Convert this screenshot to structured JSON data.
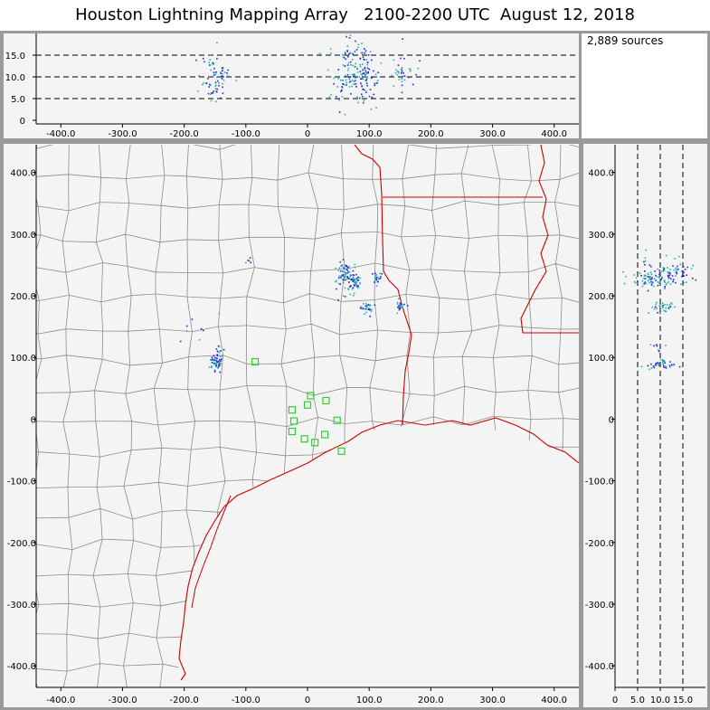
{
  "title": "Houston Lightning Mapping Array   2100-2200 UTC  August 12, 2018",
  "source_count": "2,889 sources",
  "colors": {
    "frame": "#9a9a9a",
    "panel_bg": "#f4f4f4",
    "county_lines": "#8c8c8c",
    "coast_state_lines": "#cc0000",
    "station_marker": "#33cc33",
    "source_early": "#2a1fe0",
    "source_late": "#19b8a8"
  },
  "chart_data": [
    {
      "panel": "altitude-vs-east",
      "type": "scatter",
      "xlim": [
        -440,
        440
      ],
      "ylim": [
        0,
        20
      ],
      "x_ticks": [
        "-400.0",
        "-300.0",
        "-200.0",
        "-100.0",
        "0",
        "100.0",
        "200.0",
        "300.0",
        "400.0"
      ],
      "y_ticks": [
        "0",
        "5.0",
        "10.0",
        "15.0"
      ],
      "dashed_reference_lines_y": [
        5,
        10,
        15
      ],
      "clusters": [
        {
          "x": -150,
          "y": 10,
          "spread_x": 12,
          "spread_y": 2.5,
          "n": 70
        },
        {
          "x": 70,
          "y": 12,
          "spread_x": 18,
          "spread_y": 3.5,
          "n": 140
        },
        {
          "x": 95,
          "y": 10,
          "spread_x": 10,
          "spread_y": 2.5,
          "n": 40
        },
        {
          "x": 150,
          "y": 11,
          "spread_x": 12,
          "spread_y": 2.5,
          "n": 35
        }
      ]
    },
    {
      "panel": "plan-view",
      "type": "scatter",
      "xlim": [
        -440,
        440
      ],
      "ylim": [
        -435,
        445
      ],
      "x_ticks": [
        "-400.0",
        "-300.0",
        "-200.0",
        "-100.0",
        "0",
        "100.0",
        "200.0",
        "300.0",
        "400.0"
      ],
      "y_ticks": [
        "400.0",
        "300.0",
        "200.0",
        "100.0",
        "0",
        "-100.0",
        "-200.0",
        "-300.0",
        "-400.0"
      ],
      "source_clusters": [
        {
          "x": -150,
          "y": 92,
          "spread_x": 6,
          "spread_y": 7,
          "n": 55
        },
        {
          "x": -145,
          "y": 115,
          "spread_x": 3,
          "spread_y": 4,
          "n": 8
        },
        {
          "x": -95,
          "y": 260,
          "spread_x": 5,
          "spread_y": 4,
          "n": 6
        },
        {
          "x": -180,
          "y": 145,
          "spread_x": 20,
          "spread_y": 15,
          "n": 8
        },
        {
          "x": 60,
          "y": 235,
          "spread_x": 10,
          "spread_y": 12,
          "n": 80
        },
        {
          "x": 75,
          "y": 225,
          "spread_x": 5,
          "spread_y": 6,
          "n": 40
        },
        {
          "x": 95,
          "y": 180,
          "spread_x": 6,
          "spread_y": 6,
          "n": 30
        },
        {
          "x": 112,
          "y": 230,
          "spread_x": 5,
          "spread_y": 4,
          "n": 20
        },
        {
          "x": 150,
          "y": 185,
          "spread_x": 5,
          "spread_y": 5,
          "n": 22
        }
      ],
      "lma_stations": [
        {
          "x": -85,
          "y": 93
        },
        {
          "x": -25,
          "y": 15
        },
        {
          "x": 5,
          "y": 38
        },
        {
          "x": 0,
          "y": 23
        },
        {
          "x": 30,
          "y": 30
        },
        {
          "x": -22,
          "y": -3
        },
        {
          "x": -25,
          "y": -20
        },
        {
          "x": -5,
          "y": -32
        },
        {
          "x": 12,
          "y": -38
        },
        {
          "x": 28,
          "y": -25
        },
        {
          "x": 48,
          "y": -2
        },
        {
          "x": 55,
          "y": -52
        }
      ]
    },
    {
      "panel": "north-vs-altitude",
      "type": "scatter",
      "xlim": [
        0,
        20
      ],
      "ylim": [
        -435,
        445
      ],
      "x_ticks": [
        "0",
        "5.0",
        "10.0",
        "15.0"
      ],
      "y_ticks": [
        "400.0",
        "300.0",
        "200.0",
        "100.0",
        "0",
        "-100.0",
        "-200.0",
        "-300.0",
        "-400.0"
      ],
      "dashed_reference_lines_x": [
        5,
        10,
        15
      ],
      "clusters": [
        {
          "x": 11,
          "y": 240,
          "spread_x": 2.8,
          "spread_y": 10,
          "n": 80
        },
        {
          "x": 9,
          "y": 225,
          "spread_x": 3.5,
          "spread_y": 6,
          "n": 60
        },
        {
          "x": 10.5,
          "y": 182,
          "spread_x": 1.5,
          "spread_y": 5,
          "n": 30
        },
        {
          "x": 9.5,
          "y": 115,
          "spread_x": 1,
          "spread_y": 6,
          "n": 8
        },
        {
          "x": 10,
          "y": 90,
          "spread_x": 1.8,
          "spread_y": 4,
          "n": 40
        }
      ]
    }
  ]
}
